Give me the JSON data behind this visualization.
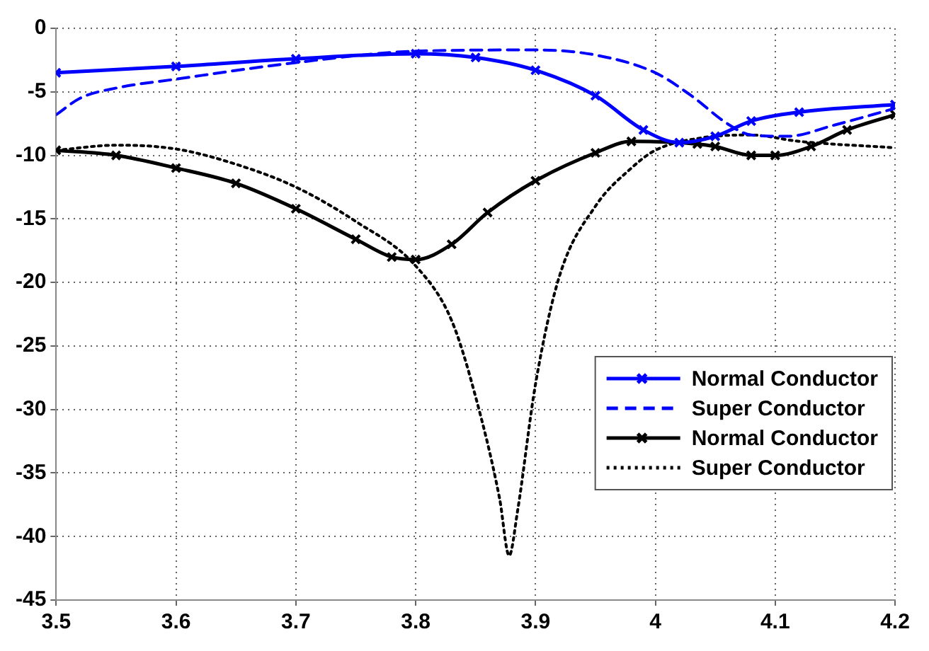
{
  "chart_data": {
    "type": "line",
    "xlim": [
      3.5,
      4.2
    ],
    "ylim": [
      -45,
      0
    ],
    "xticks": [
      3.5,
      3.6,
      3.7,
      3.8,
      3.9,
      4,
      4.1,
      4.2
    ],
    "yticks": [
      -45,
      -40,
      -35,
      -30,
      -25,
      -20,
      -15,
      -10,
      -5,
      0
    ],
    "grid": true,
    "legend": "right",
    "series": [
      {
        "name": "Normal Conductor",
        "color": "#0000ff",
        "marker": "cross",
        "line_style": "solid",
        "x": [
          3.5,
          3.6,
          3.7,
          3.8,
          3.85,
          3.9,
          3.95,
          3.99,
          4.02,
          4.05,
          4.08,
          4.12,
          4.2
        ],
        "values": [
          -3.5,
          -3,
          -2.4,
          -2,
          -2.3,
          -3.3,
          -5.3,
          -8,
          -9,
          -8.5,
          -7.3,
          -6.6,
          -6
        ]
      },
      {
        "name": "Super Conductor",
        "color": "#0000ff",
        "marker": "none",
        "line_style": "dashed",
        "x": [
          3.5,
          3.52,
          3.55,
          3.6,
          3.7,
          3.8,
          3.9,
          3.95,
          4,
          4.03,
          4.06,
          4.08,
          4.11,
          4.15,
          4.2
        ],
        "values": [
          -6.8,
          -5.5,
          -4.7,
          -4,
          -2.7,
          -1.8,
          -1.7,
          -2.1,
          -3.5,
          -5.3,
          -7.5,
          -8.4,
          -8.5,
          -7.6,
          -6.3
        ]
      },
      {
        "name": "Normal Conductor",
        "color": "#000000",
        "marker": "cross",
        "line_style": "solid",
        "x": [
          3.5,
          3.55,
          3.6,
          3.65,
          3.7,
          3.75,
          3.78,
          3.8,
          3.83,
          3.86,
          3.9,
          3.95,
          3.98,
          4.035,
          4.05,
          4.08,
          4.1,
          4.13,
          4.16,
          4.2
        ],
        "values": [
          -9.6,
          -10,
          -11,
          -12.2,
          -14.2,
          -16.6,
          -18,
          -18.2,
          -17,
          -14.5,
          -12,
          -9.8,
          -8.9,
          -9.1,
          -9.3,
          -10,
          -10,
          -9.3,
          -8,
          -6.8
        ]
      },
      {
        "name": "Super Conductor",
        "color": "#000000",
        "marker": "none",
        "line_style": "dotted",
        "x": [
          3.5,
          3.55,
          3.6,
          3.65,
          3.7,
          3.75,
          3.8,
          3.83,
          3.85,
          3.87,
          3.878,
          3.885,
          3.9,
          3.92,
          3.95,
          3.98,
          4,
          4.04,
          4.08,
          4.12,
          4.2
        ],
        "values": [
          -9.6,
          -9.2,
          -9.5,
          -10.7,
          -12.5,
          -15.2,
          -18.7,
          -23,
          -29,
          -37,
          -41.5,
          -38,
          -28,
          -19.5,
          -14,
          -11,
          -9.6,
          -8.6,
          -8.4,
          -8.9,
          -9.4
        ]
      }
    ]
  }
}
